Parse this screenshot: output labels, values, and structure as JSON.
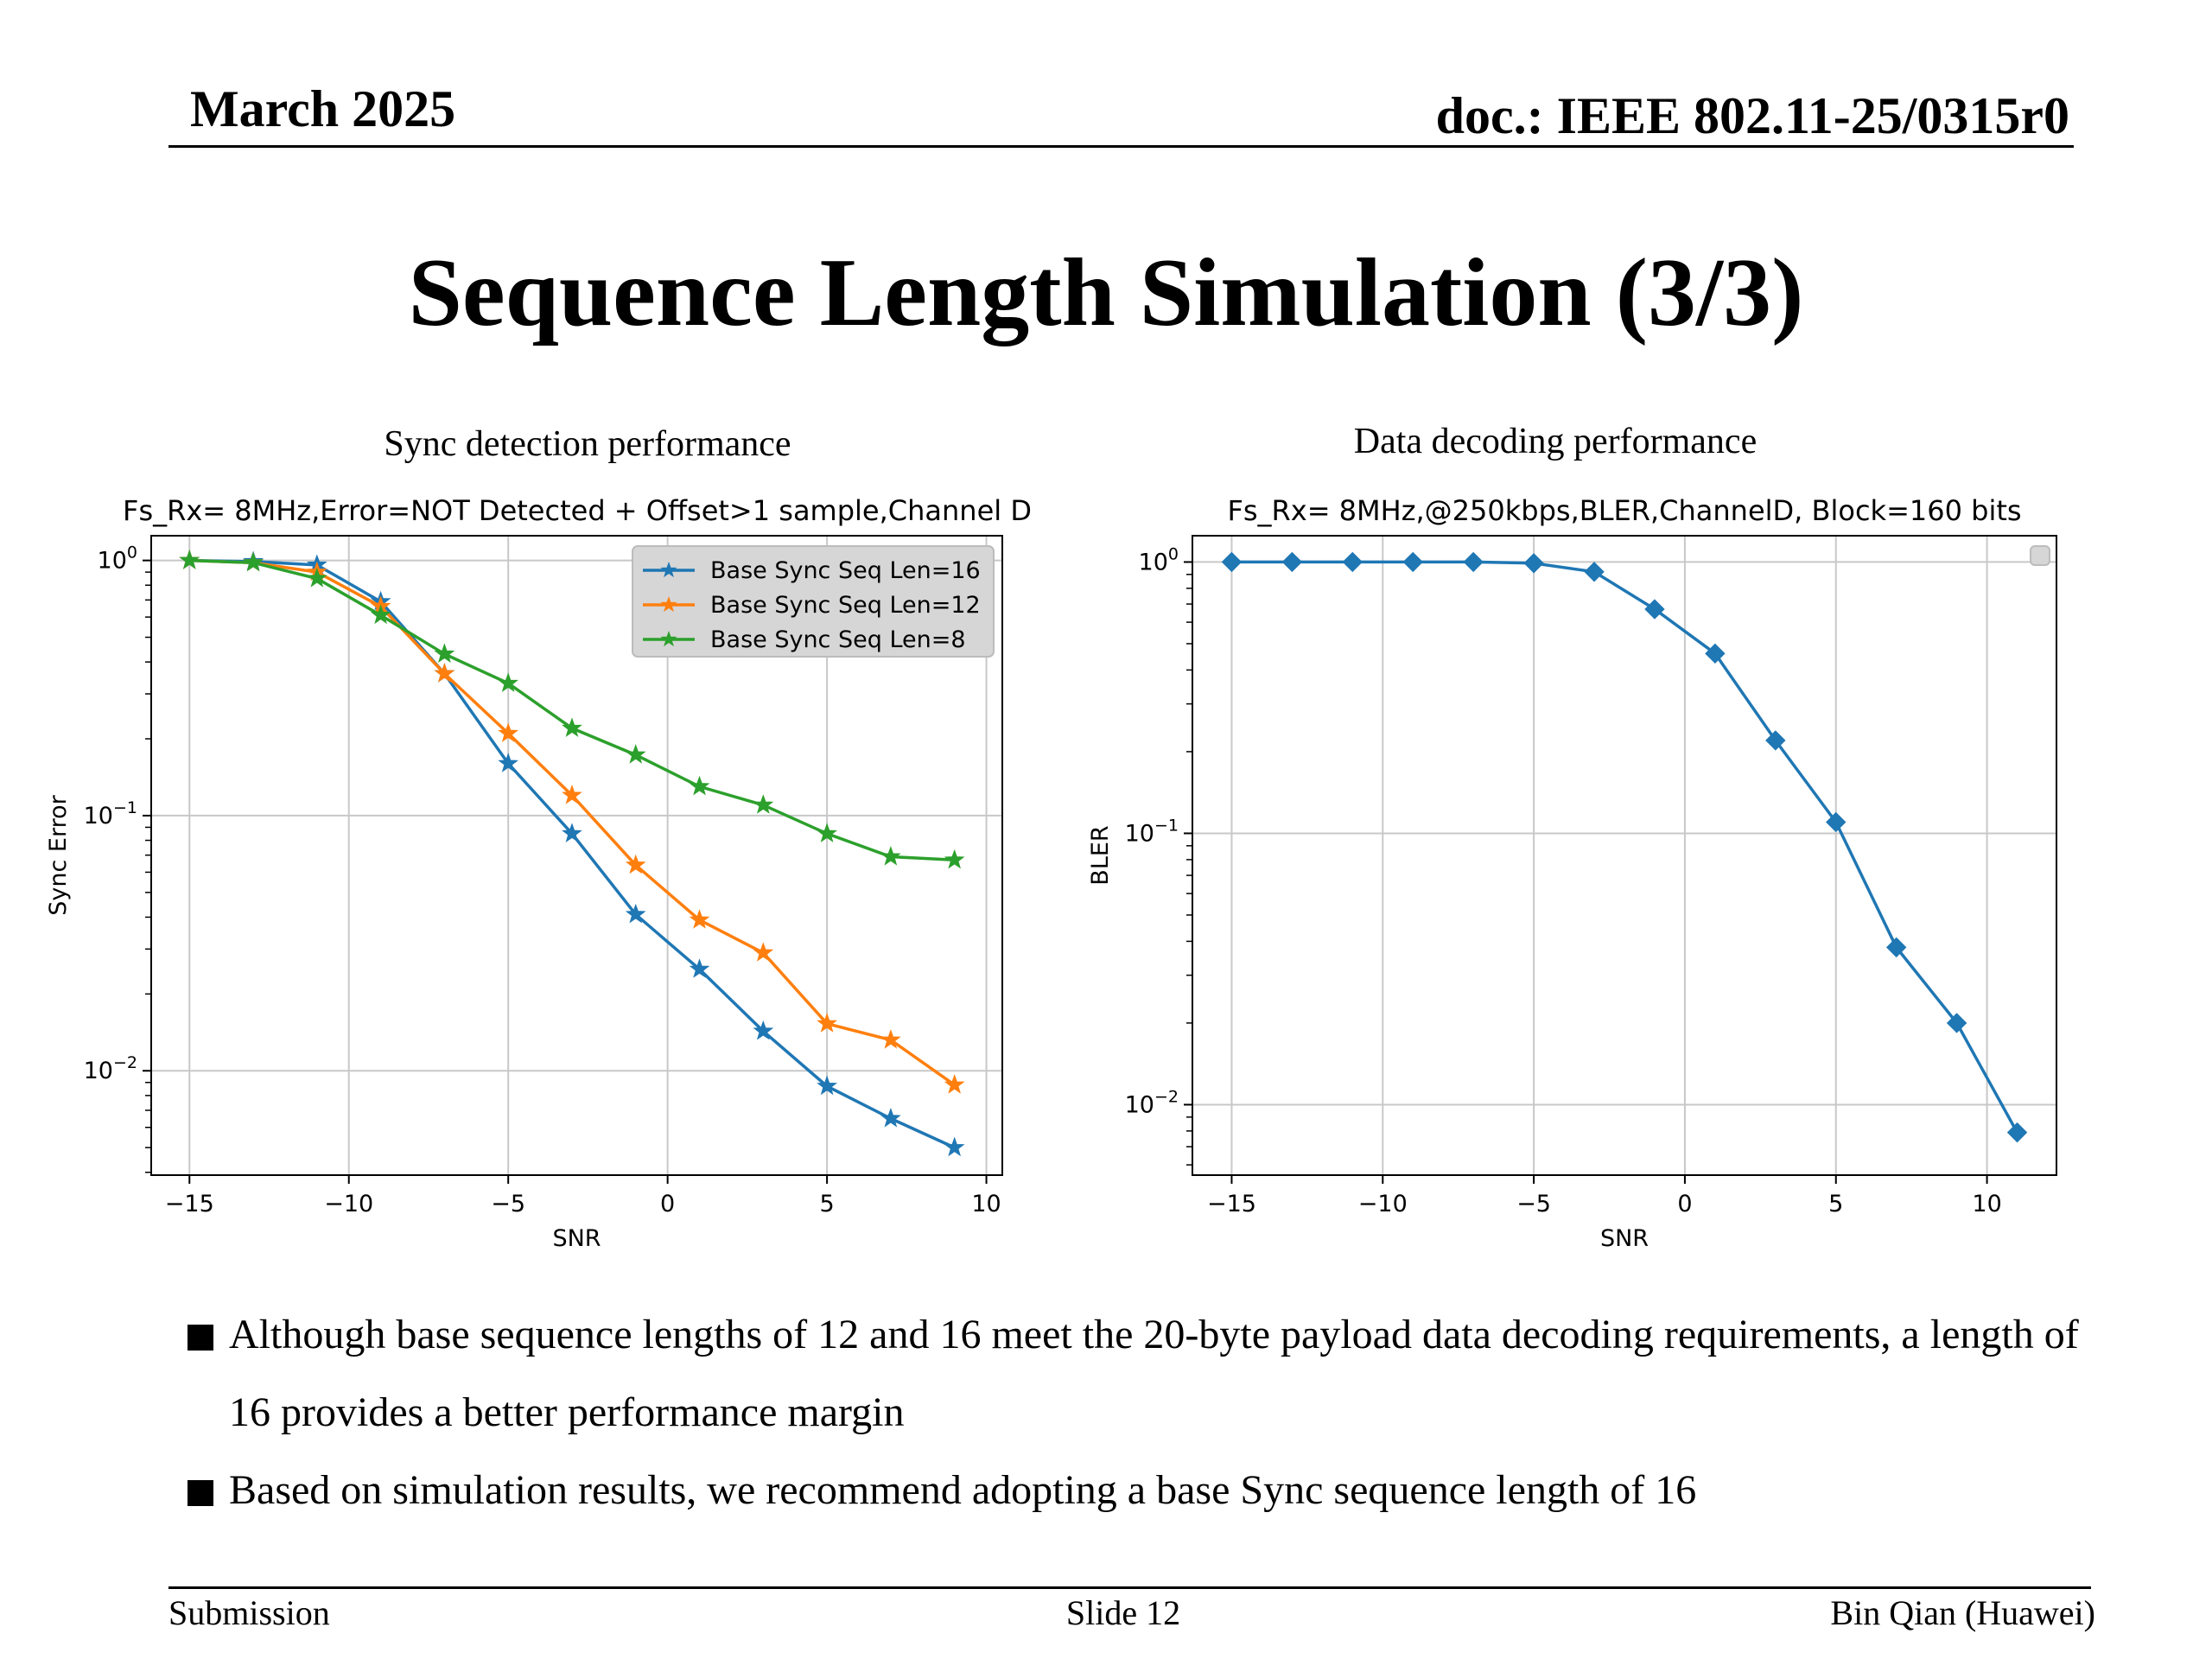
{
  "header": {
    "date": "March 2025",
    "doc": "doc.: IEEE 802.11-25/0315r0"
  },
  "title": "Sequence Length Simulation (3/3)",
  "figures": {
    "left_caption": "Sync detection performance",
    "right_caption": "Data decoding performance"
  },
  "chart_data": [
    {
      "type": "line",
      "title": "Fs_Rx= 8MHz,Error=NOT Detected + Offset>1 sample,Channel D",
      "xlabel": "SNR",
      "ylabel": "Sync Error",
      "x_scale": "linear",
      "y_scale": "log",
      "xlim": [
        -16.2,
        10.5
      ],
      "ylim": [
        0.0039,
        1.25
      ],
      "xticks": [
        -15,
        -10,
        -5,
        0,
        5,
        10
      ],
      "xtick_labels": [
        "−15",
        "−10",
        "−5",
        "0",
        "5",
        "10"
      ],
      "yticks": [
        1,
        0.1,
        0.01
      ],
      "grid": true,
      "legend_position": "upper right",
      "x": [
        -15,
        -13,
        -11,
        -9,
        -7,
        -5,
        -3,
        -1,
        1,
        3,
        5,
        7,
        9
      ],
      "series": [
        {
          "name": "Base Sync Seq Len=16",
          "color": "#1f77b4",
          "marker": "star",
          "values": [
            1.0,
            0.99,
            0.96,
            0.69,
            0.36,
            0.16,
            0.085,
            0.041,
            0.025,
            0.0143,
            0.0087,
            0.0065,
            0.005
          ]
        },
        {
          "name": "Base Sync Seq Len=12",
          "color": "#ff7f0e",
          "marker": "star",
          "values": [
            1.0,
            0.98,
            0.9,
            0.66,
            0.36,
            0.21,
            0.12,
            0.064,
            0.039,
            0.029,
            0.0153,
            0.0132,
            0.0088
          ]
        },
        {
          "name": "Base Sync Seq Len=8",
          "color": "#2ca02c",
          "marker": "star",
          "values": [
            1.0,
            0.98,
            0.85,
            0.61,
            0.43,
            0.33,
            0.22,
            0.173,
            0.13,
            0.11,
            0.085,
            0.069,
            0.067
          ]
        }
      ]
    },
    {
      "type": "line",
      "title": "Fs_Rx= 8MHz,@250kbps,BLER,ChannelD, Block=160 bits",
      "xlabel": "SNR",
      "ylabel": "BLER",
      "x_scale": "linear",
      "y_scale": "log",
      "xlim": [
        -16.3,
        12.3
      ],
      "ylim": [
        0.0055,
        1.25
      ],
      "xticks": [
        -15,
        -10,
        -5,
        0,
        5,
        10
      ],
      "xtick_labels": [
        "−15",
        "−10",
        "−5",
        "0",
        "5",
        "10"
      ],
      "yticks": [
        1,
        0.1,
        0.01
      ],
      "grid": true,
      "legend_position": "upper right",
      "x": [
        -15,
        -13,
        -11,
        -9,
        -7,
        -5,
        -3,
        -1,
        1,
        3,
        5,
        7,
        9,
        11
      ],
      "series": [
        {
          "color": "#1f77b4",
          "marker": "diamond",
          "values": [
            1.0,
            1.0,
            1.0,
            1.0,
            1.0,
            0.99,
            0.92,
            0.67,
            0.46,
            0.22,
            0.11,
            0.038,
            0.02,
            0.0079
          ]
        }
      ]
    }
  ],
  "bullets": [
    "Although base sequence lengths of 12 and 16 meet the 20-byte payload data decoding requirements, a length of 16 provides a better performance margin",
    "Based on simulation results, we recommend adopting a base Sync sequence length of 16"
  ],
  "footer": {
    "left": "Submission",
    "center": "Slide 12",
    "right": "Bin Qian (Huawei)"
  }
}
